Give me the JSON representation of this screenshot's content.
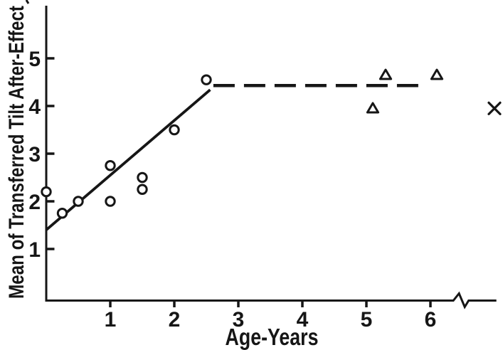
{
  "figure": {
    "background": "#ffffff",
    "ink_color": "#161616"
  },
  "chart_data": {
    "type": "scatter",
    "title": "",
    "xlabel": "Age-Years",
    "ylabel": "Mean of Transferred Tilt After-Effect",
    "xlim": [
      0,
      7.03
    ],
    "ylim": [
      0,
      6.1
    ],
    "x_ticks": [
      1,
      2,
      3,
      4,
      5,
      6
    ],
    "y_ticks": [
      1,
      2,
      3,
      4,
      5
    ],
    "grid": false,
    "legend": "none",
    "axis_break_x": 6.48,
    "series": [
      {
        "name": "young-children-circles",
        "marker": "circle",
        "points": [
          [
            0,
            2.2
          ],
          [
            0.25,
            1.75
          ],
          [
            0.5,
            2.0
          ],
          [
            1.0,
            2.0
          ],
          [
            1.0,
            2.75
          ],
          [
            1.5,
            2.25
          ],
          [
            1.5,
            2.5
          ],
          [
            2.0,
            3.5
          ],
          [
            2.5,
            4.55
          ]
        ]
      },
      {
        "name": "older-children-triangles",
        "marker": "triangle",
        "points": [
          [
            5.1,
            3.95
          ],
          [
            5.3,
            4.65
          ],
          [
            6.1,
            4.65
          ]
        ]
      },
      {
        "name": "adults-x-marker",
        "marker": "x",
        "points": [
          [
            7.0,
            3.95
          ]
        ]
      }
    ],
    "fit_lines": [
      {
        "name": "rising-solid-fit-line",
        "style": "solid",
        "from": [
          0,
          1.4
        ],
        "to": [
          2.56,
          4.34
        ]
      },
      {
        "name": "plateau-dashed-line",
        "style": "dashed",
        "from": [
          2.61,
          4.43
        ],
        "to": [
          5.86,
          4.43
        ]
      }
    ]
  }
}
